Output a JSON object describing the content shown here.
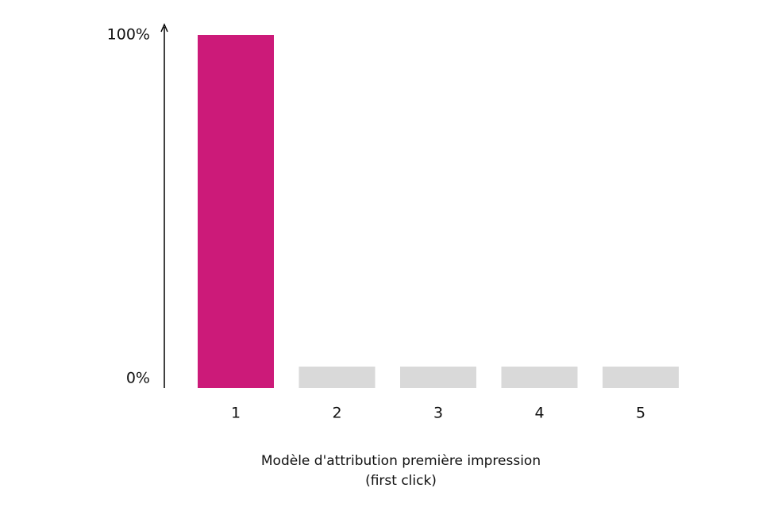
{
  "chart_data": {
    "type": "bar",
    "categories": [
      "1",
      "2",
      "3",
      "4",
      "5"
    ],
    "values": [
      100,
      0,
      0,
      0,
      0
    ],
    "colors": [
      "#cc1a79",
      "#d9d9d9",
      "#d9d9d9",
      "#d9d9d9",
      "#d9d9d9"
    ],
    "ylim": [
      0,
      100
    ],
    "yticks": [
      {
        "value": 0,
        "label": "0%"
      },
      {
        "value": 100,
        "label": "100%"
      }
    ],
    "xlabel": [
      "Modèle d'attribution première impression",
      "(first click)"
    ],
    "grid": false
  }
}
